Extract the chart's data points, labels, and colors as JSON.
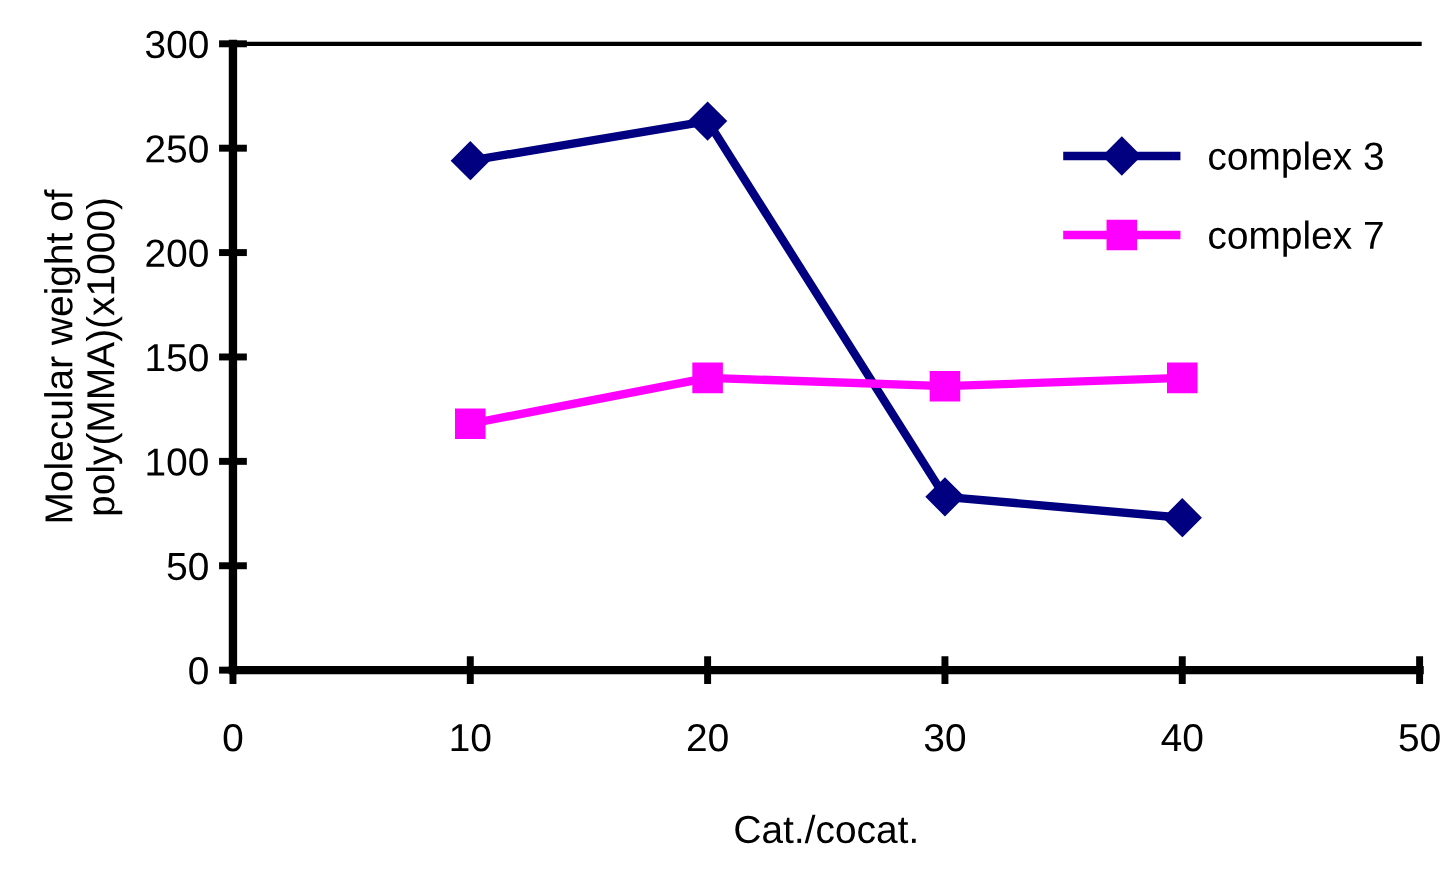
{
  "chart_data": {
    "type": "line",
    "xlabel": "Cat./cocat.",
    "ylabel": "Molecular weight of\npoly(MMA)(x1000)",
    "x": [
      10,
      20,
      30,
      40
    ],
    "series": [
      {
        "name": "complex 3",
        "color": "#000080",
        "marker": "diamond",
        "values": [
          244,
          263,
          83,
          73
        ]
      },
      {
        "name": "complex 7",
        "color": "#ff00ff",
        "marker": "square",
        "values": [
          118,
          140,
          136,
          140
        ]
      }
    ],
    "xlim": [
      0,
      50
    ],
    "xticks": [
      0,
      10,
      20,
      30,
      40,
      50
    ],
    "ylim": [
      0,
      300
    ],
    "yticks": [
      0,
      50,
      100,
      150,
      200,
      250,
      300
    ],
    "grid": false,
    "legend": "top right",
    "line_style": "solid"
  }
}
